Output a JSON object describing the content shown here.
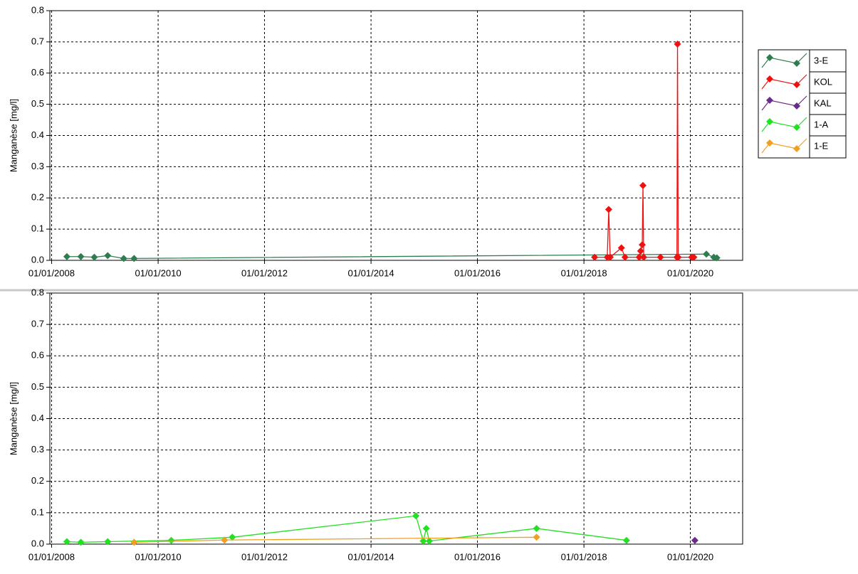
{
  "legend": {
    "entries": [
      {
        "name": "3-E",
        "color": "#2e7d4f"
      },
      {
        "name": "KOL",
        "color": "#ee1111"
      },
      {
        "name": "KAL",
        "color": "#6a2c8a"
      },
      {
        "name": "1-A",
        "color": "#22e022"
      },
      {
        "name": "1-E",
        "color": "#f0a020"
      }
    ]
  },
  "chart_data": [
    {
      "type": "line",
      "ylabel": "Manganèse [mg/l]",
      "xlim": [
        "2007-12-20",
        "2020-12-25"
      ],
      "xticks": [
        {
          "value": "2008-01-01",
          "label": "01/01/2008"
        },
        {
          "value": "2010-01-01",
          "label": "01/01/2010"
        },
        {
          "value": "2012-01-01",
          "label": "01/01/2012"
        },
        {
          "value": "2014-01-01",
          "label": "01/01/2014"
        },
        {
          "value": "2016-01-01",
          "label": "01/01/2016"
        },
        {
          "value": "2018-01-01",
          "label": "01/01/2018"
        },
        {
          "value": "2020-01-01",
          "label": "01/01/2020"
        }
      ],
      "ylim": [
        0,
        0.8
      ],
      "yticks": [
        {
          "value": 0,
          "label": "0.0"
        },
        0.1,
        0.2,
        0.3,
        0.4,
        0.5,
        0.6,
        0.7,
        0.8
      ],
      "grid": true,
      "series": [
        {
          "color": "#2e7d4f",
          "x": [
            "2008-04-15",
            "2008-07-20",
            "2008-10-20",
            "2009-01-20",
            "2009-05-10",
            "2009-07-20",
            "2020-04-20",
            "2020-06-10",
            "2020-07-01"
          ],
          "values": [
            0.012,
            0.012,
            0.01,
            0.015,
            0.006,
            0.006,
            0.02,
            0.01,
            0.008
          ]
        },
        {
          "color": "#ee1111",
          "x": [
            "2018-03-15",
            "2018-06-10",
            "2018-06-20",
            "2018-06-30",
            "2018-09-15",
            "2018-10-10",
            "2019-01-15",
            "2019-01-25",
            "2019-02-05",
            "2019-02-10",
            "2019-02-15",
            "2019-06-10",
            "2019-10-01",
            "2019-10-05",
            "2019-10-10",
            "2020-01-10",
            "2020-01-25"
          ],
          "values": [
            0.01,
            0.01,
            0.163,
            0.01,
            0.04,
            0.01,
            0.01,
            0.03,
            0.05,
            0.24,
            0.01,
            0.01,
            0.01,
            0.693,
            0.01,
            0.01,
            0.01
          ]
        }
      ]
    },
    {
      "type": "line",
      "ylabel": "Manganèse [mg/l]",
      "xlim": [
        "2007-12-20",
        "2020-12-25"
      ],
      "xticks": [
        {
          "value": "2008-01-01",
          "label": "01/01/2008"
        },
        {
          "value": "2010-01-01",
          "label": "01/01/2010"
        },
        {
          "value": "2012-01-01",
          "label": "01/01/2012"
        },
        {
          "value": "2014-01-01",
          "label": "01/01/2014"
        },
        {
          "value": "2016-01-01",
          "label": "01/01/2016"
        },
        {
          "value": "2018-01-01",
          "label": "01/01/2018"
        },
        {
          "value": "2020-01-01",
          "label": "01/01/2020"
        }
      ],
      "ylim": [
        0,
        0.8
      ],
      "yticks": [
        {
          "value": 0,
          "label": "0.0"
        },
        0.1,
        0.2,
        0.3,
        0.4,
        0.5,
        0.6,
        0.7,
        0.8
      ],
      "grid": true,
      "series": [
        {
          "color": "#22e022",
          "x": [
            "2008-04-15",
            "2008-07-20",
            "2009-01-20",
            "2010-04-01",
            "2011-05-25",
            "2014-11-05",
            "2014-12-25",
            "2015-01-15",
            "2015-02-05",
            "2017-02-10",
            "2018-10-20"
          ],
          "values": [
            0.008,
            0.006,
            0.008,
            0.012,
            0.022,
            0.09,
            0.01,
            0.05,
            0.01,
            0.05,
            0.012
          ]
        },
        {
          "color": "#f0a020",
          "x": [
            "2009-07-20",
            "2011-04-01",
            "2017-02-10"
          ],
          "values": [
            0.006,
            0.013,
            0.022
          ]
        },
        {
          "color": "#6a2c8a",
          "x": [
            "2020-02-01"
          ],
          "values": [
            0.012
          ]
        }
      ]
    }
  ]
}
